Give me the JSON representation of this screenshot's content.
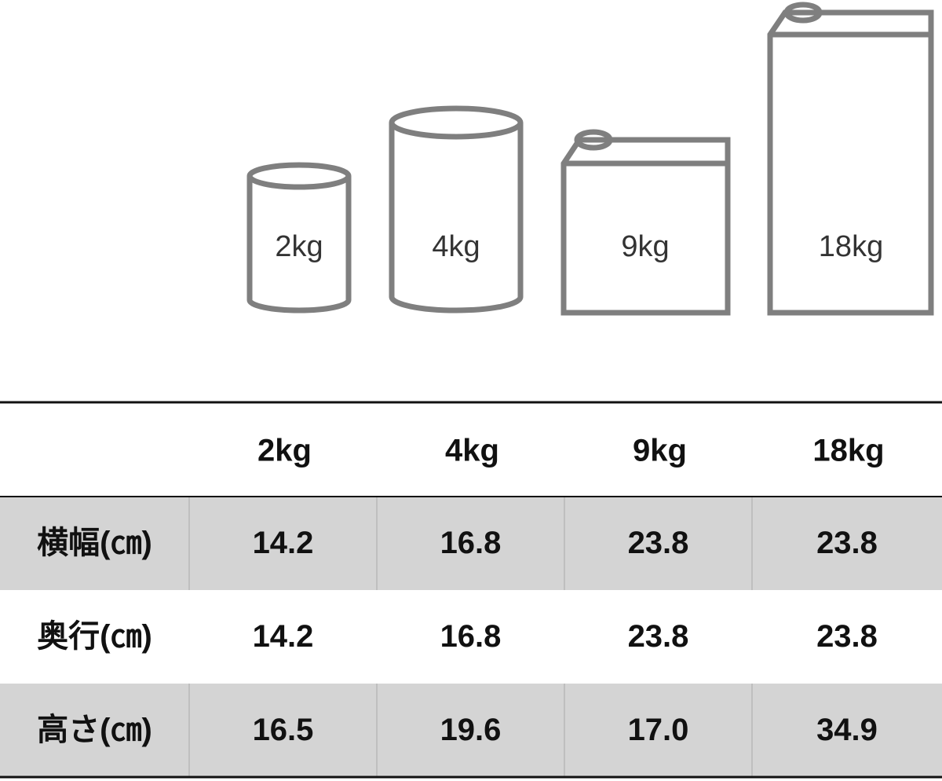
{
  "icons": [
    {
      "label": "2kg"
    },
    {
      "label": "4kg"
    },
    {
      "label": "9kg"
    },
    {
      "label": "18kg"
    }
  ],
  "table": {
    "columns": [
      "2kg",
      "4kg",
      "9kg",
      "18kg"
    ],
    "rows": [
      {
        "label": "横幅(㎝)",
        "cells": [
          "14.2",
          "16.8",
          "23.8",
          "23.8"
        ]
      },
      {
        "label": "奥行(㎝)",
        "cells": [
          "14.2",
          "16.8",
          "23.8",
          "23.8"
        ]
      },
      {
        "label": "高さ(㎝)",
        "cells": [
          "16.5",
          "19.6",
          "17.0",
          "34.9"
        ]
      }
    ]
  }
}
